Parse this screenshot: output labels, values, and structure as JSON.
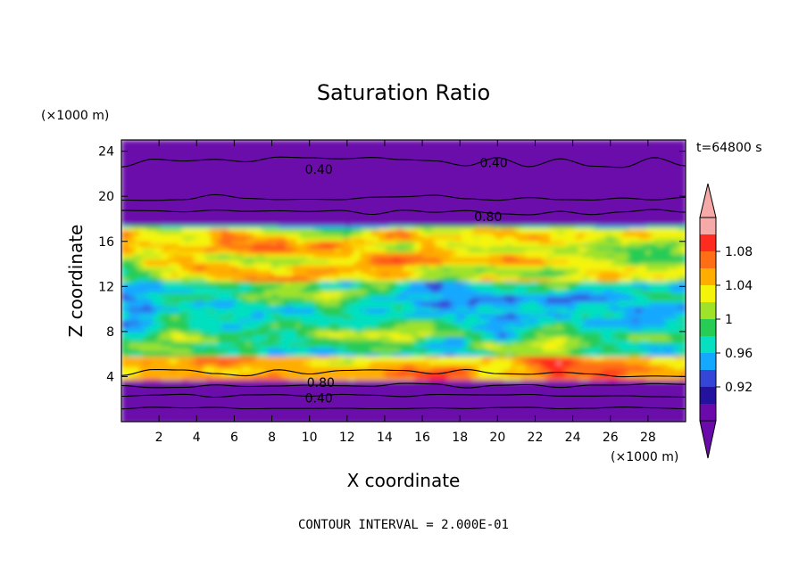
{
  "chart_data": {
    "type": "heatmap",
    "title": "Saturation Ratio",
    "xlabel": "X coordinate",
    "ylabel": "Z coordinate",
    "x_unit": "(×1000 m)",
    "y_unit": "(×1000 m)",
    "time_label": "t=64800 s",
    "footnote": "CONTOUR INTERVAL = 2.000E-01",
    "xlim": [
      0,
      30
    ],
    "ylim": [
      0,
      25
    ],
    "x_ticks": [
      2,
      4,
      6,
      8,
      10,
      12,
      14,
      16,
      18,
      20,
      22,
      24,
      26,
      28
    ],
    "y_ticks": [
      4,
      8,
      12,
      16,
      20,
      24
    ],
    "colorbar": {
      "levels": [
        0.92,
        0.96,
        1,
        1.04,
        1.08
      ],
      "labels": [
        "0.92",
        "0.96",
        "1",
        "1.04",
        "1.08"
      ],
      "colors": [
        "#6a0aab",
        "#22129d",
        "#3446d8",
        "#14a8ff",
        "#06e0c0",
        "#26cc54",
        "#9fe22a",
        "#f4f40a",
        "#ffae00",
        "#ff6d14",
        "#ff2b1e",
        "#f6aaa8"
      ],
      "extend": "both"
    },
    "contours": [
      {
        "value": 0.4,
        "label": "0.40",
        "label_positions": [
          [
            10.5,
            22.4
          ],
          [
            19.8,
            23.0
          ],
          [
            10.5,
            2.1
          ]
        ]
      },
      {
        "value": 0.8,
        "label": "0.80",
        "label_positions": [
          [
            19.5,
            18.2
          ],
          [
            10.6,
            3.5
          ]
        ]
      }
    ],
    "bands": [
      {
        "z_range": [
          0,
          2.2
        ],
        "value": 0.4
      },
      {
        "z_range": [
          2.2,
          3.8
        ],
        "value": 0.6
      },
      {
        "z_range": [
          3.8,
          5.8
        ],
        "value": 1.06
      },
      {
        "z_range": [
          5.8,
          17.5
        ],
        "value": 0.97
      },
      {
        "z_range": [
          17.5,
          25
        ],
        "value": 0.4
      }
    ]
  }
}
